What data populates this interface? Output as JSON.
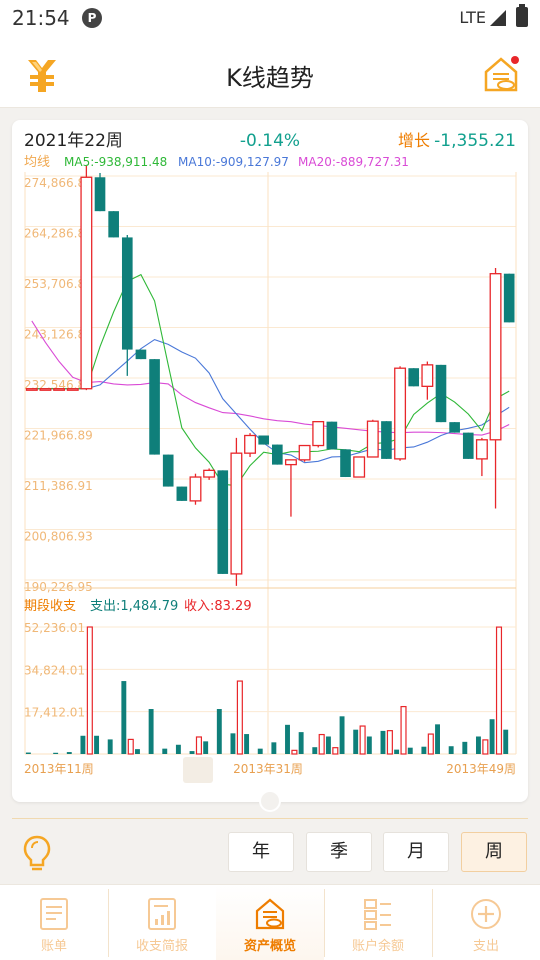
{
  "status_bar": {
    "time": "21:54",
    "notif_glyph": "P",
    "network": "LTE"
  },
  "header": {
    "title": "K线趋势",
    "left_icon": "yen-coin-icon",
    "right_icon": "asset-house-icon"
  },
  "summary": {
    "period": "2021年22周",
    "change_pct": "-0.14%",
    "growth_label": "增长",
    "growth_value": "-1,355.21"
  },
  "ma_row": {
    "label": "均线",
    "ma5": "MA5:-938,911.48",
    "ma10": "MA10:-909,127.97",
    "ma20": "MA20:-889,727.31"
  },
  "volume_row": {
    "label": "期段收支",
    "expense": "支出:1,484.79",
    "income": "收入:83.29"
  },
  "colors": {
    "up": "#e8262a",
    "down": "#0f7f7a",
    "ma5": "#2fb838",
    "ma10": "#4a78d8",
    "ma20": "#d94bd6",
    "axis_text": "#f0b878",
    "change_pct": "#12a08e",
    "accent": "#ee7d00"
  },
  "chart_data": [
    {
      "type": "candlestick",
      "y_tick_labels": [
        "274,866.80",
        "264,286.81",
        "253,706.83",
        "243,126.85",
        "232,546.87",
        "221,966.89",
        "211,386.91",
        "200,806.93",
        "190,226.95"
      ],
      "ylim": [
        190226.95,
        274866.8
      ],
      "x_tick_labels": [
        "2013年11周",
        "2013年31周",
        "2013年49周"
      ],
      "candles": [
        {
          "o": 230300,
          "c": 230300,
          "h": 230300,
          "l": 230300
        },
        {
          "o": 230300,
          "c": 230300,
          "h": 230300,
          "l": 230300
        },
        {
          "o": 230300,
          "c": 230300,
          "h": 230300,
          "l": 230300
        },
        {
          "o": 230300,
          "c": 230300,
          "h": 230300,
          "l": 230300
        },
        {
          "o": 230300,
          "c": 274600,
          "h": 277000,
          "l": 230000
        },
        {
          "o": 274600,
          "c": 267500,
          "h": 275500,
          "l": 267500
        },
        {
          "o": 267500,
          "c": 262000,
          "h": 267500,
          "l": 262000
        },
        {
          "o": 262000,
          "c": 238500,
          "h": 262500,
          "l": 233000
        },
        {
          "o": 238500,
          "c": 236500,
          "h": 238500,
          "l": 236500
        },
        {
          "o": 236500,
          "c": 216500,
          "h": 236500,
          "l": 216500
        },
        {
          "o": 216500,
          "c": 209800,
          "h": 216500,
          "l": 209800
        },
        {
          "o": 209800,
          "c": 206800,
          "h": 209800,
          "l": 206800
        },
        {
          "o": 206800,
          "c": 211800,
          "h": 212500,
          "l": 206000
        },
        {
          "o": 211800,
          "c": 213200,
          "h": 213600,
          "l": 211200
        },
        {
          "o": 213200,
          "c": 191500,
          "h": 213200,
          "l": 191500
        },
        {
          "o": 191500,
          "c": 216800,
          "h": 220000,
          "l": 189000
        },
        {
          "o": 216800,
          "c": 220500,
          "h": 221000,
          "l": 216000
        },
        {
          "o": 220500,
          "c": 218600,
          "h": 220500,
          "l": 218600
        },
        {
          "o": 218600,
          "c": 214400,
          "h": 218600,
          "l": 214400
        },
        {
          "o": 214400,
          "c": 215400,
          "h": 215400,
          "l": 203500
        },
        {
          "o": 215400,
          "c": 218400,
          "h": 218400,
          "l": 215000
        },
        {
          "o": 218400,
          "c": 223400,
          "h": 223400,
          "l": 218000
        },
        {
          "o": 223400,
          "c": 217600,
          "h": 223400,
          "l": 217600
        },
        {
          "o": 217600,
          "c": 211800,
          "h": 217600,
          "l": 211800
        },
        {
          "o": 211800,
          "c": 216000,
          "h": 216000,
          "l": 211800
        },
        {
          "o": 216000,
          "c": 223500,
          "h": 223800,
          "l": 216000
        },
        {
          "o": 223500,
          "c": 215600,
          "h": 223500,
          "l": 215600
        },
        {
          "o": 215600,
          "c": 234600,
          "h": 235000,
          "l": 215200
        },
        {
          "o": 234600,
          "c": 230800,
          "h": 234600,
          "l": 230800
        },
        {
          "o": 230800,
          "c": 235300,
          "h": 236000,
          "l": 228000
        },
        {
          "o": 235300,
          "c": 223300,
          "h": 235300,
          "l": 223300
        },
        {
          "o": 223300,
          "c": 221100,
          "h": 223300,
          "l": 221100
        },
        {
          "o": 221100,
          "c": 215600,
          "h": 221100,
          "l": 215600
        },
        {
          "o": 215600,
          "c": 219600,
          "h": 220000,
          "l": 212000
        },
        {
          "o": 219600,
          "c": 254400,
          "h": 255600,
          "l": 205200
        },
        {
          "o": 254400,
          "c": 244200,
          "h": 254400,
          "l": 244200
        }
      ],
      "ma5": [
        230300,
        230300,
        230300,
        230300,
        230300,
        239100,
        246400,
        252800,
        254200,
        248700,
        235300,
        222100,
        217900,
        214900,
        210300,
        210000,
        214200,
        217000,
        216500,
        217100,
        217100,
        217200,
        217700,
        217500,
        217100,
        218800,
        219000,
        219900,
        224900,
        227300,
        229300,
        227500,
        225000,
        221500,
        228200,
        229800
      ],
      "ma10": [
        230300,
        230300,
        230300,
        230300,
        230300,
        231100,
        233600,
        236100,
        238700,
        240600,
        239600,
        238000,
        236700,
        233600,
        228200,
        225000,
        221800,
        218900,
        216900,
        216400,
        214800,
        215100,
        216000,
        216100,
        216900,
        217700,
        217400,
        217900,
        218100,
        219100,
        220500,
        221500,
        222000,
        222700,
        224600,
        226400
      ],
      "ma20": [
        244500,
        240000,
        236000,
        232700,
        231600,
        231800,
        231300,
        231100,
        231200,
        231600,
        231300,
        229000,
        227400,
        226300,
        225300,
        225100,
        224600,
        224000,
        223600,
        223400,
        222900,
        222600,
        222300,
        222000,
        221700,
        221400,
        221200,
        221100,
        221200,
        221200,
        221100,
        220900,
        220700,
        220600,
        221400,
        222800
      ]
    },
    {
      "type": "bar",
      "y_tick_labels": [
        "52,236.01",
        "34,824.01",
        "17,412.01"
      ],
      "ylim": [
        0,
        52236.01
      ],
      "series": [
        {
          "name": "支出",
          "values": [
            0,
            0,
            0,
            0,
            3000,
            5100,
            0,
            0,
            0,
            0,
            1200,
            0,
            0,
            0,
            0,
            0,
            0,
            0,
            0,
            0,
            0,
            0,
            0,
            0,
            0,
            0,
            0,
            0,
            0,
            0,
            0,
            0,
            0,
            0,
            0,
            0
          ]
        },
        {
          "name": "收入",
          "values": [
            0,
            0,
            0,
            0,
            0,
            0,
            0,
            0,
            0,
            0,
            0,
            0,
            0,
            0,
            0,
            0,
            0,
            0,
            0,
            0,
            0,
            0,
            0,
            0,
            0,
            0,
            0,
            0,
            0,
            0,
            0,
            0,
            0,
            0,
            0,
            0
          ]
        }
      ]
    }
  ],
  "volume_bars": [
    {
      "e": 600,
      "i": 0
    },
    {
      "e": 0,
      "i": 0
    },
    {
      "e": 500,
      "i": 0
    },
    {
      "e": 800,
      "i": 0
    },
    {
      "e": 7500,
      "i": 52236
    },
    {
      "e": 7500,
      "i": 0
    },
    {
      "e": 6000,
      "i": 0
    },
    {
      "e": 30000,
      "i": 6000
    },
    {
      "e": 2000,
      "i": 0
    },
    {
      "e": 18500,
      "i": 0
    },
    {
      "e": 2200,
      "i": 0
    },
    {
      "e": 3800,
      "i": 0
    },
    {
      "e": 1200,
      "i": 7000
    },
    {
      "e": 5200,
      "i": 0
    },
    {
      "e": 18500,
      "i": 0
    },
    {
      "e": 8500,
      "i": 30000
    },
    {
      "e": 8200,
      "i": 0
    },
    {
      "e": 2200,
      "i": 0
    },
    {
      "e": 4800,
      "i": 0
    },
    {
      "e": 12000,
      "i": 1500
    },
    {
      "e": 9000,
      "i": 0
    },
    {
      "e": 2800,
      "i": 8000
    },
    {
      "e": 7200,
      "i": 2600
    },
    {
      "e": 15500,
      "i": 0
    },
    {
      "e": 10000,
      "i": 11500
    },
    {
      "e": 7200,
      "i": 0
    },
    {
      "e": 9500,
      "i": 9600
    },
    {
      "e": 1800,
      "i": 19500
    },
    {
      "e": 2600,
      "i": 0
    },
    {
      "e": 3000,
      "i": 8200
    },
    {
      "e": 12200,
      "i": 0
    },
    {
      "e": 3200,
      "i": 0
    },
    {
      "e": 5000,
      "i": 0
    },
    {
      "e": 7200,
      "i": 5800
    },
    {
      "e": 14300,
      "i": 52200
    },
    {
      "e": 10000,
      "i": 0
    }
  ],
  "period_buttons": [
    "年",
    "季",
    "月",
    "周"
  ],
  "active_period": "周",
  "tabs": [
    {
      "label": "账单",
      "icon": "bill-icon"
    },
    {
      "label": "收支简报",
      "icon": "report-icon"
    },
    {
      "label": "资产概览",
      "icon": "asset-overview-icon"
    },
    {
      "label": "账户余额",
      "icon": "account-balance-icon"
    },
    {
      "label": "支出",
      "icon": "add-expense-icon"
    }
  ]
}
